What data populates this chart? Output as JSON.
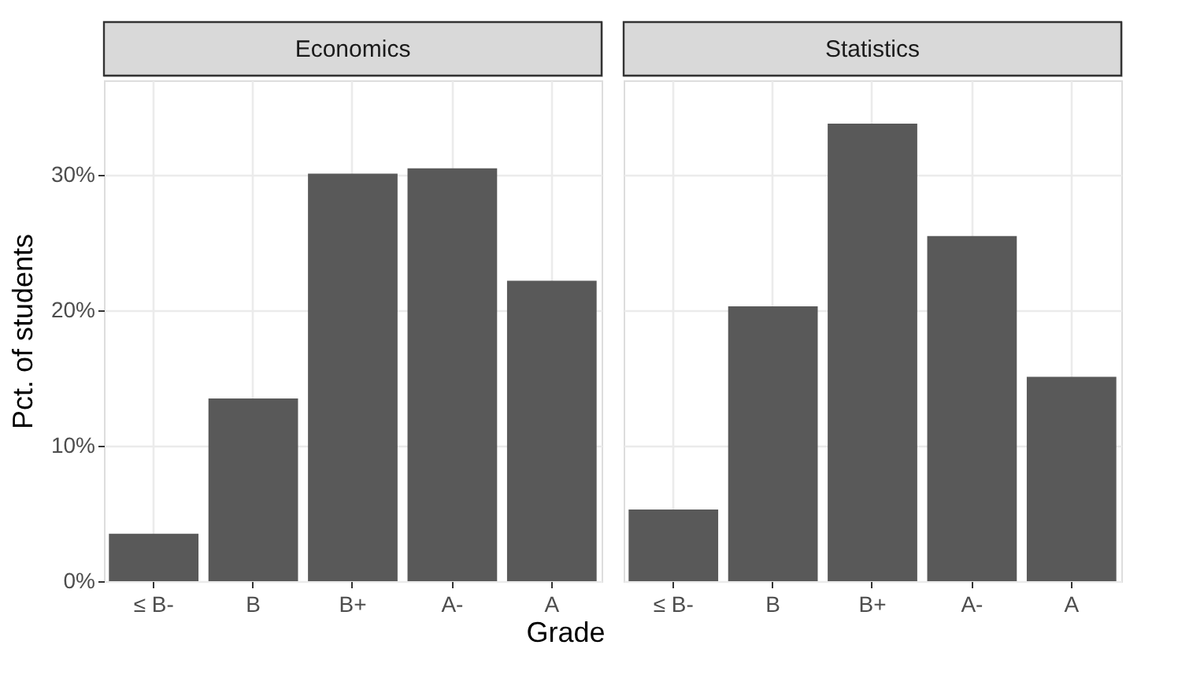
{
  "chart_data": [
    {
      "type": "bar",
      "title": "Economics",
      "categories": [
        "≤ B-",
        "B",
        "B+",
        "A-",
        "A"
      ],
      "values": [
        3.5,
        13.5,
        30.1,
        30.5,
        22.2
      ],
      "color": "#595959",
      "ylabel": "Pct. of students",
      "xlabel": "Grade",
      "ylim": [
        0,
        37
      ],
      "yticks": [
        {
          "value": 0,
          "label": "0%"
        },
        {
          "value": 10,
          "label": "10%"
        },
        {
          "value": 20,
          "label": "20%"
        },
        {
          "value": 30,
          "label": "30%"
        }
      ],
      "grid": true
    },
    {
      "type": "bar",
      "title": "Statistics",
      "categories": [
        "≤ B-",
        "B",
        "B+",
        "A-",
        "A"
      ],
      "values": [
        5.3,
        20.3,
        33.8,
        25.5,
        15.1
      ],
      "color": "#595959",
      "ylim": [
        0,
        37
      ],
      "yticks": [
        {
          "value": 0,
          "label": null
        },
        {
          "value": 10,
          "label": null
        },
        {
          "value": 20,
          "label": null
        },
        {
          "value": 30,
          "label": null
        }
      ],
      "grid": true,
      "tick_labels": "x"
    }
  ]
}
